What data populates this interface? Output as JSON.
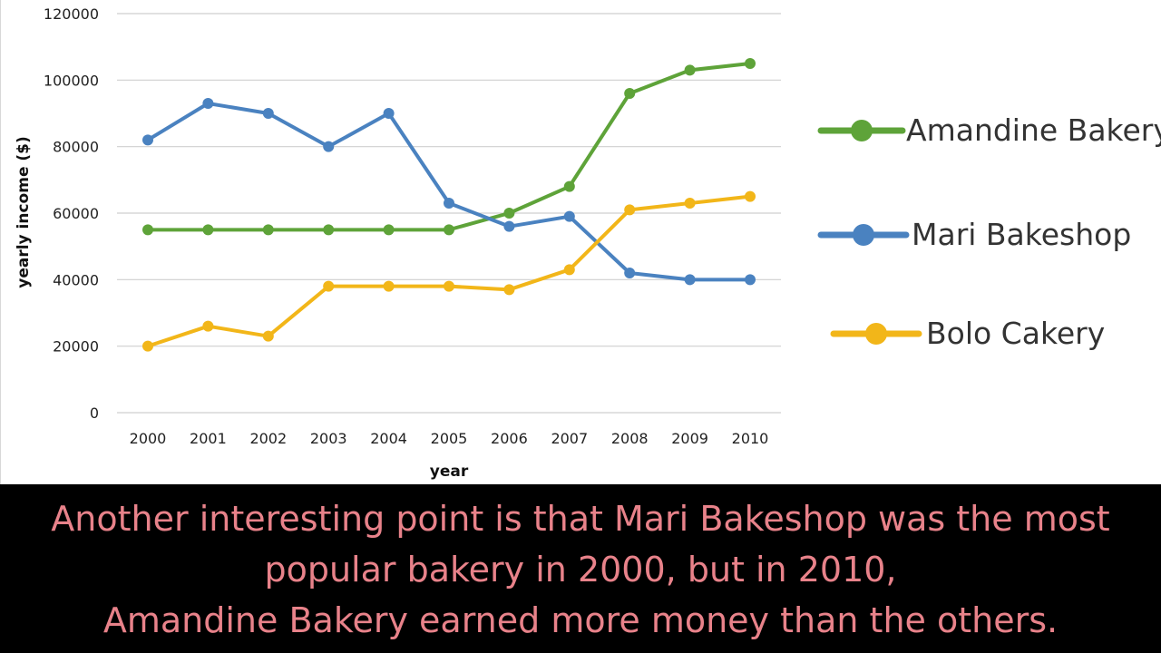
{
  "chart_data": {
    "type": "line",
    "xlabel": "year",
    "ylabel": "yearly income ($)",
    "ylim": [
      0,
      120000
    ],
    "yticks": [
      "0",
      "20000",
      "40000",
      "60000",
      "80000",
      "100000",
      "120000"
    ],
    "x": [
      "2000",
      "2001",
      "2002",
      "2003",
      "2004",
      "2005",
      "2006",
      "2007",
      "2008",
      "2009",
      "2010"
    ],
    "grid": true,
    "legend_position": "right",
    "series": [
      {
        "name": "Amandine Bakery",
        "color": "#5ea339",
        "values": [
          55000,
          55000,
          55000,
          55000,
          55000,
          55000,
          60000,
          68000,
          96000,
          103000,
          105000
        ]
      },
      {
        "name": "Mari Bakeshop",
        "color": "#4a82c0",
        "values": [
          82000,
          93000,
          90000,
          80000,
          90000,
          63000,
          56000,
          59000,
          42000,
          40000,
          40000
        ]
      },
      {
        "name": "Bolo Cakery",
        "color": "#f2b619",
        "values": [
          20000,
          26000,
          23000,
          38000,
          38000,
          38000,
          37000,
          43000,
          61000,
          63000,
          65000
        ]
      }
    ]
  },
  "subtitle": {
    "line1": "Another interesting point is that Mari Bakeshop was the most",
    "line2": "popular bakery in 2000, but in 2010,",
    "line3": "Amandine Bakery earned more money than the others."
  }
}
